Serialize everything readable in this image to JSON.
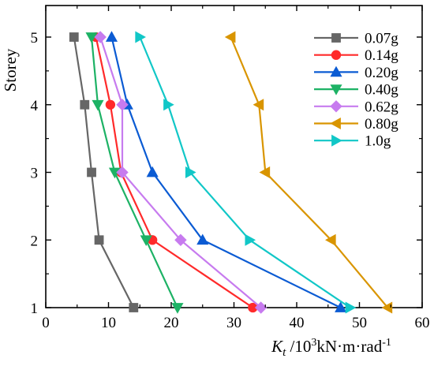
{
  "chart_data": {
    "type": "line",
    "xlabel": "K_t /10^3kN·m·rad^-1",
    "xlabel_parts": {
      "base": "K",
      "sub": "t",
      "mid": " /10",
      "sup1": "3",
      "mid2": "kN·m·rad",
      "sup2": "-1"
    },
    "ylabel": "Storey",
    "xlim": [
      0,
      60
    ],
    "ylim": [
      1,
      5
    ],
    "x_ticks": [
      "0",
      "10",
      "20",
      "30",
      "40",
      "50",
      "60"
    ],
    "y_ticks": [
      "1",
      "2",
      "3",
      "4",
      "5"
    ],
    "grid": false,
    "legend_position": "top-right",
    "series": [
      {
        "name": "0.07g",
        "color": "#666666",
        "marker": "square",
        "x": [
          14.0,
          8.5,
          7.3,
          6.2,
          4.5
        ],
        "y": [
          1,
          2,
          3,
          4,
          5
        ]
      },
      {
        "name": "0.14g",
        "color": "#ff2a2a",
        "marker": "circle",
        "x": [
          33.0,
          17.0,
          12.0,
          10.3,
          8.0
        ],
        "y": [
          1,
          2,
          3,
          4,
          5
        ]
      },
      {
        "name": "0.20g",
        "color": "#0b5bd3",
        "marker": "triangle-up",
        "x": [
          47.0,
          25.0,
          17.0,
          13.0,
          10.5
        ],
        "y": [
          1,
          2,
          3,
          4,
          5
        ]
      },
      {
        "name": "0.40g",
        "color": "#1db265",
        "marker": "triangle-down",
        "x": [
          21.0,
          16.0,
          11.0,
          8.3,
          7.3
        ],
        "y": [
          1,
          2,
          3,
          4,
          5
        ]
      },
      {
        "name": "0.62g",
        "color": "#c77bef",
        "marker": "diamond",
        "x": [
          34.3,
          21.5,
          12.2,
          12.2,
          8.7
        ],
        "y": [
          1,
          2,
          3,
          4,
          5
        ]
      },
      {
        "name": "0.80g",
        "color": "#d99500",
        "marker": "triangle-left",
        "x": [
          54.5,
          45.5,
          35.0,
          34.0,
          29.5
        ],
        "y": [
          1,
          2,
          3,
          4,
          5
        ]
      },
      {
        "name": "1.0g",
        "color": "#11c7c7",
        "marker": "triangle-right",
        "x": [
          48.5,
          32.5,
          23.0,
          19.5,
          15.0
        ],
        "y": [
          1,
          2,
          3,
          4,
          5
        ]
      }
    ]
  }
}
